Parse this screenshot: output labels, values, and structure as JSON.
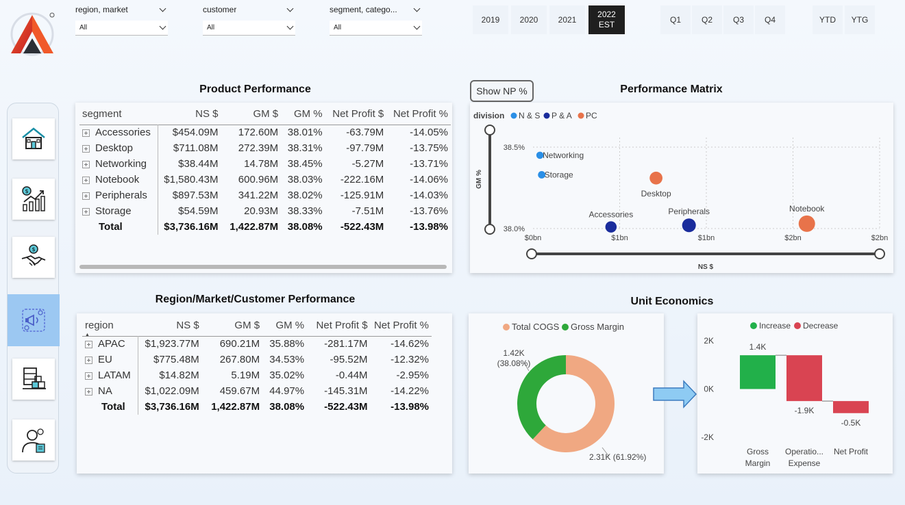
{
  "filters": [
    {
      "label": "region, market",
      "value": "All"
    },
    {
      "label": "customer",
      "value": "All"
    },
    {
      "label": "segment, catego...",
      "value": "All"
    }
  ],
  "years": [
    "2019",
    "2020",
    "2021"
  ],
  "year_active": {
    "line1": "2022",
    "line2": "EST"
  },
  "quarters": [
    "Q1",
    "Q2",
    "Q3",
    "Q4"
  ],
  "period": [
    "YTD",
    "YTG"
  ],
  "nav": [
    "home-icon",
    "finance-growth-icon",
    "handshake-deal-icon",
    "marketing-icon",
    "supply-chain-icon",
    "executive-icon"
  ],
  "product_performance": {
    "title": "Product Performance",
    "columns": [
      "segment",
      "NS $",
      "GM $",
      "GM %",
      "Net Profit $",
      "Net Profit %"
    ],
    "rows": [
      [
        "Accessories",
        "$454.09M",
        "172.60M",
        "38.01%",
        "-63.79M",
        "-14.05%"
      ],
      [
        "Desktop",
        "$711.08M",
        "272.39M",
        "38.31%",
        "-97.79M",
        "-13.75%"
      ],
      [
        "Networking",
        "$38.44M",
        "14.78M",
        "38.45%",
        "-5.27M",
        "-13.71%"
      ],
      [
        "Notebook",
        "$1,580.43M",
        "600.96M",
        "38.03%",
        "-222.16M",
        "-14.06%"
      ],
      [
        "Peripherals",
        "$897.53M",
        "341.22M",
        "38.02%",
        "-125.91M",
        "-14.03%"
      ],
      [
        "Storage",
        "$54.59M",
        "20.93M",
        "38.33%",
        "-7.51M",
        "-13.76%"
      ]
    ],
    "total": [
      "Total",
      "$3,736.16M",
      "1,422.87M",
      "38.08%",
      "-522.43M",
      "-13.98%"
    ]
  },
  "region_performance": {
    "title": "Region/Market/Customer Performance",
    "columns": [
      "region",
      "NS $",
      "GM $",
      "GM %",
      "Net Profit $",
      "Net Profit %"
    ],
    "rows": [
      [
        "APAC",
        "$1,923.77M",
        "690.21M",
        "35.88%",
        "-281.17M",
        "-14.62%"
      ],
      [
        "EU",
        "$775.48M",
        "267.80M",
        "34.53%",
        "-95.52M",
        "-12.32%"
      ],
      [
        "LATAM",
        "$14.82M",
        "5.19M",
        "35.02%",
        "-0.44M",
        "-2.95%"
      ],
      [
        "NA",
        "$1,022.09M",
        "459.67M",
        "44.97%",
        "-145.31M",
        "-14.22%"
      ]
    ],
    "total": [
      "Total",
      "$3,736.16M",
      "1,422.87M",
      "38.08%",
      "-522.43M",
      "-13.98%"
    ]
  },
  "show_np_label": "Show NP %",
  "colors": {
    "ns": "#2b8fe6",
    "pa": "#1a2c9c",
    "pc": "#e8734a",
    "cogs": "#f0a882",
    "gm": "#2ea83a",
    "increase": "#22b04a",
    "decrease": "#d94452"
  },
  "chart_data": [
    {
      "type": "scatter",
      "title": "Performance Matrix",
      "xlabel": "NS $",
      "ylabel": "GM %",
      "legend_title": "division",
      "legend": [
        "N & S",
        "P & A",
        "PC"
      ],
      "x_ticks": [
        "$0bn",
        "$1bn",
        "$1bn",
        "$2bn",
        "$2bn"
      ],
      "x_tick_values": [
        0,
        0.5,
        1.0,
        1.5,
        2.0
      ],
      "y_ticks": [
        "38.0%",
        "38.5%"
      ],
      "y_tick_values": [
        38.0,
        38.5
      ],
      "xlim": [
        0,
        2.0
      ],
      "ylim": [
        38.0,
        38.5
      ],
      "points": [
        {
          "label": "Networking",
          "x": 0.04,
          "y": 38.45,
          "series": "N & S"
        },
        {
          "label": "Storage",
          "x": 0.05,
          "y": 38.33,
          "series": "N & S"
        },
        {
          "label": "Desktop",
          "x": 0.71,
          "y": 38.31,
          "series": "PC"
        },
        {
          "label": "Accessories",
          "x": 0.45,
          "y": 38.01,
          "series": "P & A"
        },
        {
          "label": "Peripherals",
          "x": 0.9,
          "y": 38.02,
          "series": "P & A"
        },
        {
          "label": "Notebook",
          "x": 1.58,
          "y": 38.03,
          "series": "PC"
        }
      ],
      "legend_placement": "top-left",
      "grid": true
    },
    {
      "type": "pie",
      "title": "Unit Economics",
      "legend": [
        "Total COGS",
        "Gross Margin"
      ],
      "slices": [
        {
          "name": "Total COGS",
          "value": 2.31,
          "label": "2.31K (61.92%)"
        },
        {
          "name": "Gross Margin",
          "value": 1.42,
          "label": "1.42K (38.08%)"
        }
      ]
    },
    {
      "type": "bar",
      "subtype": "waterfall",
      "legend": [
        "Increase",
        "Decrease"
      ],
      "categories": [
        "Gross Margin",
        "Operatio... Expense",
        "Net Profit"
      ],
      "category_lines": [
        [
          "Gross",
          "Margin"
        ],
        [
          "Operatio...",
          "Expense"
        ],
        [
          "Net Profit"
        ]
      ],
      "values": [
        1.4,
        -1.9,
        -0.5
      ],
      "data_labels": [
        "1.4K",
        "-1.9K",
        "-0.5K"
      ],
      "y_ticks": [
        "2K",
        "0K",
        "-2K"
      ],
      "y_tick_values": [
        2,
        0,
        -2
      ],
      "ylim": [
        -2,
        2
      ]
    }
  ]
}
